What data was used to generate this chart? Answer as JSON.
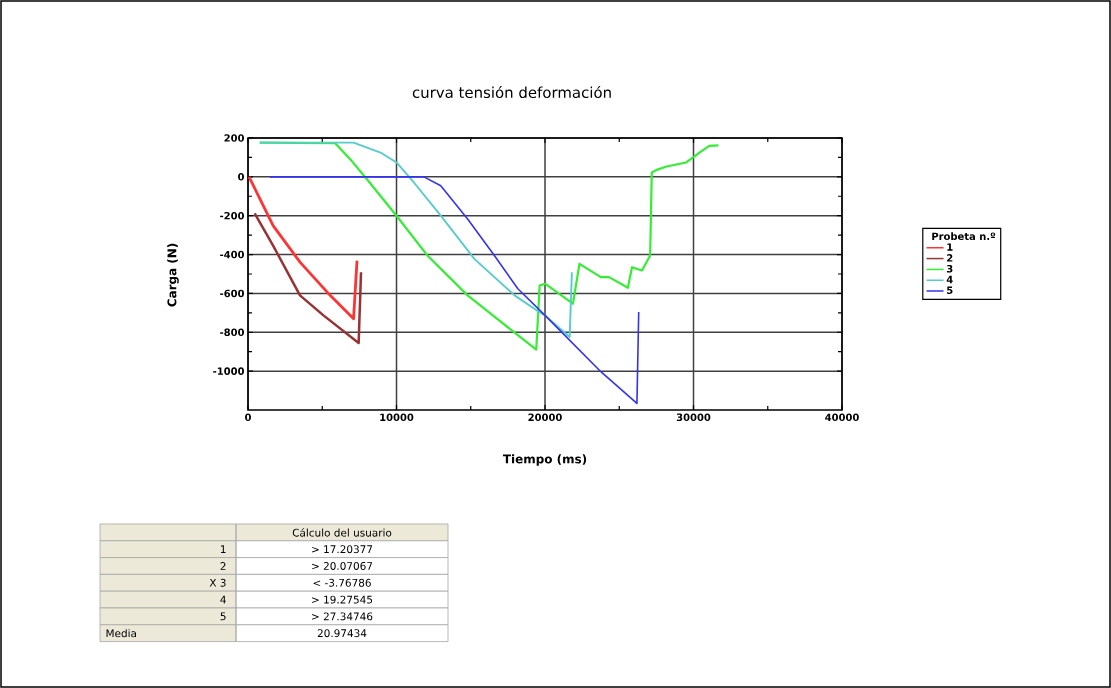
{
  "chart_data": {
    "type": "line",
    "title": "curva tensión deformación",
    "xlabel": "Tiempo (ms)",
    "ylabel": "Carga (N)",
    "legend_title": "Probeta n.º",
    "xlim": [
      0,
      40000
    ],
    "ylim": [
      -1200,
      200
    ],
    "xticks": [
      0,
      10000,
      20000,
      30000,
      40000
    ],
    "yticks": [
      -1000,
      -800,
      -600,
      -400,
      -200,
      0,
      200
    ],
    "grid": true,
    "legend": "right",
    "series": [
      {
        "name": "1",
        "color": "#ff3333",
        "x": [
          70,
          1690,
          3500,
          5530,
          7110,
          7340
        ],
        "values": [
          0,
          -251,
          -439,
          -610,
          -730,
          -431
        ]
      },
      {
        "name": "2",
        "color": "#993333",
        "x": [
          450,
          1690,
          3500,
          5080,
          7450,
          7610
        ],
        "values": [
          -188,
          -354,
          -610,
          -713,
          -855,
          -491
        ]
      },
      {
        "name": "3",
        "color": "#33ee33",
        "x": [
          790,
          5870,
          6880,
          8010,
          10000,
          12080,
          14790,
          17040,
          19410,
          19640,
          20000,
          21100,
          21880,
          22320,
          23760,
          24310,
          25580,
          25860,
          26530,
          27080,
          27190,
          27520,
          28190,
          29510,
          30400,
          31060,
          31680
        ],
        "values": [
          176,
          173,
          91,
          -12,
          -200,
          -405,
          -610,
          -747,
          -889,
          -559,
          -550,
          -610,
          -653,
          -448,
          -516,
          -516,
          -571,
          -465,
          -482,
          -405,
          22,
          36,
          53,
          74,
          125,
          159,
          162
        ]
      },
      {
        "name": "4",
        "color": "#55cccc",
        "x": [
          790,
          7110,
          8920,
          10000,
          11170,
          12980,
          15240,
          17950,
          19530,
          20000,
          21660,
          21810
        ],
        "values": [
          176,
          176,
          125,
          74,
          -29,
          -200,
          -422,
          -610,
          -692,
          -713,
          -824,
          -491
        ]
      },
      {
        "name": "5",
        "color": "#3333ee",
        "x": [
          1470,
          11850,
          12980,
          14790,
          16590,
          18170,
          20000,
          23760,
          26190,
          26310
        ],
        "values": [
          0,
          0,
          -46,
          -217,
          -405,
          -576,
          -713,
          -1003,
          -1166,
          -696
        ]
      }
    ],
    "annotations": [
      "Cálculo del usuario",
      "1",
      "> 17.20377",
      "2",
      "> 20.07067",
      "X 3",
      "< -3.76786",
      "4",
      "> 19.27545",
      "5",
      "> 27.34746",
      "Media",
      "20.97434"
    ]
  }
}
